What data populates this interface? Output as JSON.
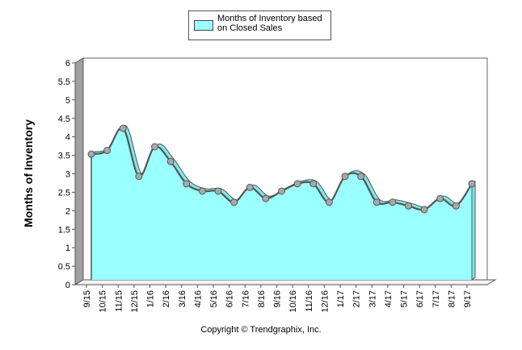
{
  "chart_data": {
    "type": "area",
    "title": "",
    "xlabel": "",
    "ylabel": "Months of Inventory",
    "ylim": [
      0,
      6
    ],
    "yticks": [
      "0",
      "0.5",
      "1",
      "1.5",
      "2",
      "2.5",
      "3",
      "3.5",
      "4",
      "4.5",
      "5",
      "5.5",
      "6"
    ],
    "categories": [
      "9/15",
      "10/15",
      "11/15",
      "12/15",
      "1/16",
      "2/16",
      "3/16",
      "4/16",
      "5/16",
      "6/16",
      "7/16",
      "8/16",
      "9/16",
      "10/16",
      "11/16",
      "12/16",
      "1/17",
      "2/17",
      "3/17",
      "4/17",
      "5/17",
      "6/17",
      "7/17",
      "8/17",
      "9/17"
    ],
    "series": [
      {
        "name": "Months of Inventory based on Closed Sales",
        "values": [
          3.4,
          3.5,
          4.1,
          2.8,
          3.6,
          3.2,
          2.6,
          2.4,
          2.4,
          2.1,
          2.5,
          2.2,
          2.4,
          2.6,
          2.6,
          2.1,
          2.8,
          2.8,
          2.1,
          2.1,
          2.0,
          1.9,
          2.2,
          2.0,
          2.6
        ],
        "fill_color": "#99ffff",
        "line_color": "#555555"
      }
    ],
    "legend": "top-center",
    "grid": false
  },
  "legend_label": "Months of Inventory based on Closed Sales",
  "footer": "Copyright © Trendgraphix, Inc."
}
